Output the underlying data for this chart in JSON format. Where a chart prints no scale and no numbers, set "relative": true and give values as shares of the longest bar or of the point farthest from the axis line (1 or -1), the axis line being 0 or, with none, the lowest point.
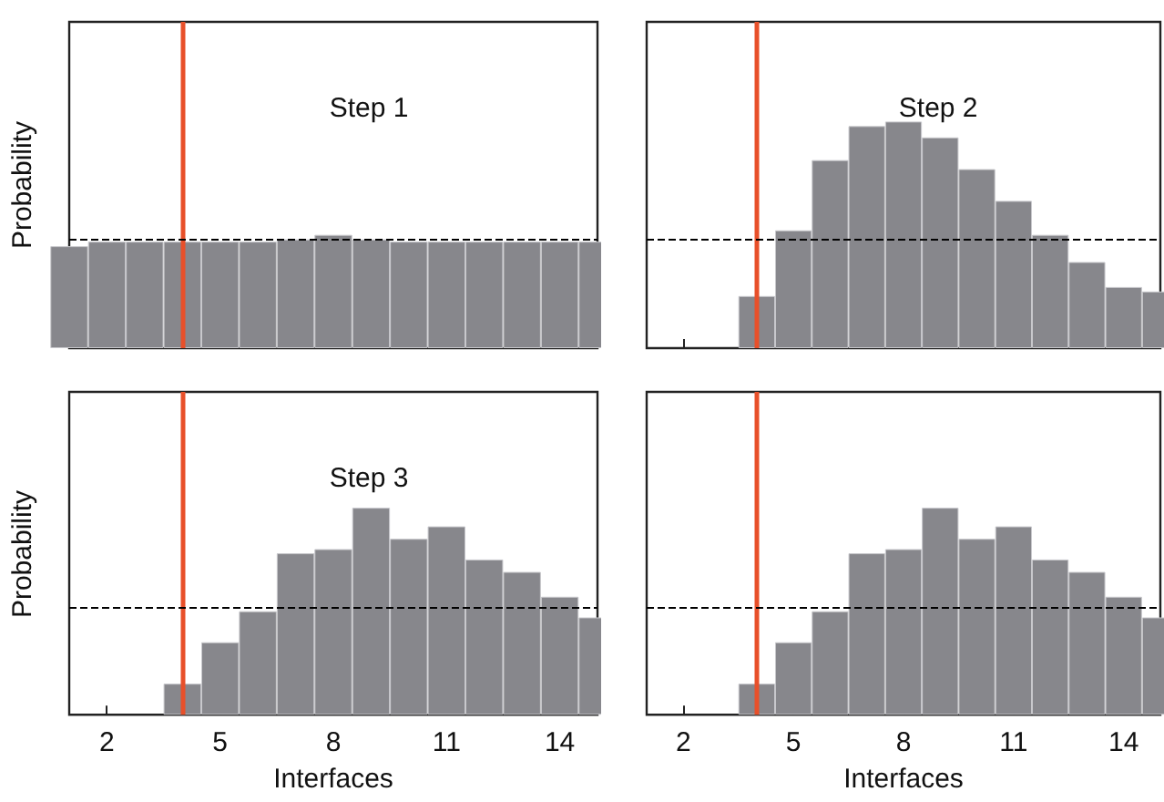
{
  "chart_data": [
    {
      "type": "bar",
      "title": "Step 1",
      "ylabel": "Probability",
      "relative": true,
      "color": "#87878c",
      "tick_labels": false,
      "xlim": [
        1,
        15
      ],
      "xticks": [
        2,
        5,
        8,
        11,
        14
      ],
      "grid": false,
      "x": [
        1,
        2,
        3,
        4,
        5,
        6,
        7,
        8,
        9,
        10,
        11,
        12,
        13,
        14,
        15
      ],
      "values": [
        0.9,
        0.94,
        0.94,
        0.94,
        0.94,
        0.94,
        0.96,
        1,
        0.96,
        0.94,
        0.94,
        0.94,
        0.94,
        0.94,
        0.94
      ],
      "ref_lines": [
        {
          "axis": "x",
          "value": 4,
          "color": "#e8502a",
          "line_style": "solid"
        },
        {
          "axis": "y",
          "value": 0.96,
          "color": "#000000",
          "line_style": "dashed"
        }
      ]
    },
    {
      "type": "bar",
      "title": "Step 2",
      "relative": true,
      "color": "#87878c",
      "tick_labels": false,
      "xlim": [
        1,
        15
      ],
      "xticks": [
        2,
        5,
        8,
        11,
        14
      ],
      "grid": false,
      "x": [
        4,
        5,
        6,
        7,
        8,
        9,
        10,
        11,
        12,
        13,
        14,
        15
      ],
      "values": [
        0.23,
        0.52,
        0.83,
        0.98,
        1,
        0.93,
        0.79,
        0.65,
        0.5,
        0.38,
        0.27,
        0.25
      ],
      "ref_lines": [
        {
          "axis": "x",
          "value": 4,
          "color": "#e8502a",
          "line_style": "solid"
        },
        {
          "axis": "y",
          "value": 0.48,
          "color": "#000000",
          "line_style": "dashed"
        }
      ]
    },
    {
      "type": "bar",
      "title": "Step 3",
      "ylabel": "Probability",
      "xlabel": "Interfaces",
      "relative": true,
      "color": "#87878c",
      "tick_labels": "x",
      "xlim": [
        1,
        15
      ],
      "xticks": [
        2,
        5,
        8,
        11,
        14
      ],
      "grid": false,
      "x": [
        4,
        5,
        6,
        7,
        8,
        9,
        10,
        11,
        12,
        13,
        14,
        15
      ],
      "values": [
        0.15,
        0.35,
        0.5,
        0.78,
        0.8,
        1,
        0.85,
        0.91,
        0.75,
        0.69,
        0.57,
        0.47
      ],
      "ref_lines": [
        {
          "axis": "x",
          "value": 4,
          "color": "#e8502a",
          "line_style": "solid"
        },
        {
          "axis": "y",
          "value": 0.52,
          "color": "#000000",
          "line_style": "dashed"
        }
      ]
    },
    {
      "type": "bar",
      "xlabel": "Interfaces",
      "relative": true,
      "color": "#87878c",
      "tick_labels": "x",
      "xlim": [
        1,
        15
      ],
      "xticks": [
        2,
        5,
        8,
        11,
        14
      ],
      "grid": false,
      "x": [
        4,
        5,
        6,
        7,
        8,
        9,
        10,
        11,
        12,
        13,
        14,
        15
      ],
      "values": [
        0.15,
        0.35,
        0.5,
        0.78,
        0.8,
        1,
        0.85,
        0.91,
        0.75,
        0.69,
        0.57,
        0.47
      ],
      "ref_lines": [
        {
          "axis": "x",
          "value": 4,
          "color": "#e8502a",
          "line_style": "solid"
        },
        {
          "axis": "y",
          "value": 0.52,
          "color": "#000000",
          "line_style": "dashed"
        }
      ]
    }
  ]
}
